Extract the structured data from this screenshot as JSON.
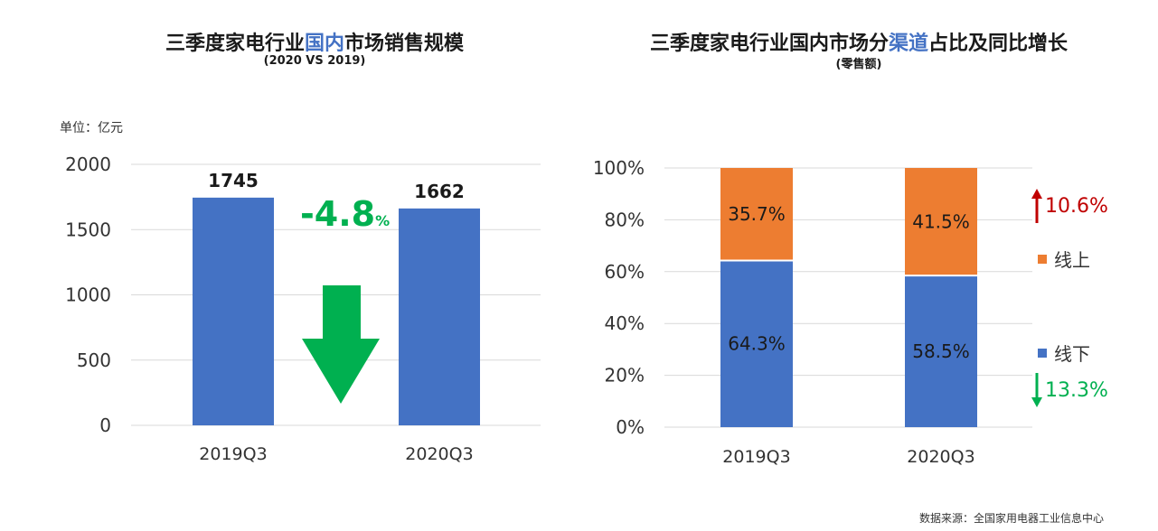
{
  "left": {
    "title_pre": "三季度家电行业",
    "title_hl": "国内",
    "title_post": "市场销售规模",
    "subtitle": "(2020 VS 2019)",
    "unit": "单位：亿元",
    "change_value": "-4.8",
    "change_unit": "%"
  },
  "right": {
    "title_pre": "三季度家电行业国内市场分",
    "title_hl": "渠道",
    "title_post": "占比及同比增长",
    "subtitle": "(零售额)",
    "online_growth": "10.6%",
    "offline_growth": "13.3%"
  },
  "source": "数据来源：全国家用电器工业信息中心",
  "colors": {
    "blue": "#4472C4",
    "orange": "#ED7D31",
    "green": "#00B050",
    "red": "#C00000",
    "grid": "#D9D9D9"
  },
  "chart_data": [
    {
      "type": "bar",
      "categories": [
        "2019Q3",
        "2020Q3"
      ],
      "values": [
        1745,
        1662
      ],
      "data_labels": [
        "1745",
        "1662"
      ],
      "ylim": [
        0,
        2000
      ],
      "yticks": [
        0,
        500,
        1000,
        1500,
        2000
      ],
      "grid": true
    },
    {
      "type": "bar",
      "stacked": true,
      "categories": [
        "2019Q3",
        "2020Q3"
      ],
      "ylim": [
        0,
        100
      ],
      "yticks": [
        "0%",
        "20%",
        "40%",
        "60%",
        "80%",
        "100%"
      ],
      "series": [
        {
          "name": "线下",
          "values": [
            64.3,
            58.5
          ],
          "labels": [
            "64.3%",
            "58.5%"
          ]
        },
        {
          "name": "线上",
          "values": [
            35.7,
            41.5
          ],
          "labels": [
            "35.7%",
            "41.5%"
          ]
        }
      ],
      "legend_position": "right",
      "grid": true
    }
  ]
}
